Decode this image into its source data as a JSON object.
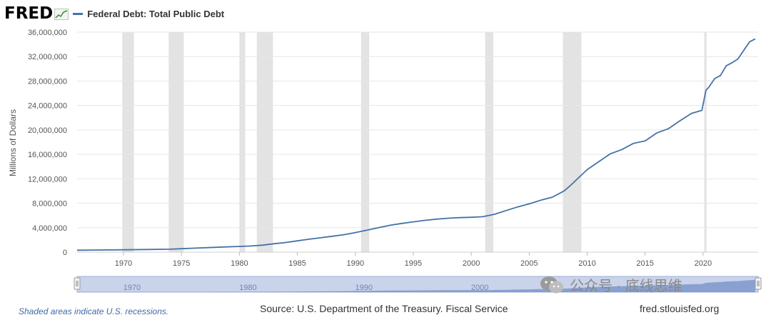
{
  "header": {
    "logo_text": "FRED",
    "legend_label": "Federal Debt: Total Public Debt"
  },
  "chart_data": {
    "type": "line",
    "title": "Federal Debt: Total Public Debt",
    "ylabel": "Millions of Dollars",
    "xlabel": "",
    "ylim": [
      0,
      36000000
    ],
    "xlim": [
      1966,
      2024.75
    ],
    "yticks": [
      0,
      4000000,
      8000000,
      12000000,
      16000000,
      20000000,
      24000000,
      28000000,
      32000000,
      36000000
    ],
    "ytick_labels": [
      "0",
      "4,000,000",
      "8,000,000",
      "12,000,000",
      "16,000,000",
      "20,000,000",
      "24,000,000",
      "28,000,000",
      "32,000,000",
      "36,000,000"
    ],
    "xticks": [
      1970,
      1975,
      1980,
      1985,
      1990,
      1995,
      2000,
      2005,
      2010,
      2015,
      2020
    ],
    "xtick_labels": [
      "1970",
      "1975",
      "1980",
      "1985",
      "1990",
      "1995",
      "2000",
      "2005",
      "2010",
      "2015",
      "2020"
    ],
    "grid": true,
    "series_color": "#4572a7",
    "recession_color": "#e3e3e3",
    "recessions": [
      [
        1969.9,
        1970.9
      ],
      [
        1973.9,
        1975.2
      ],
      [
        1980.0,
        1980.5
      ],
      [
        1981.5,
        1982.9
      ],
      [
        1990.5,
        1991.2
      ],
      [
        2001.2,
        2001.9
      ],
      [
        2007.9,
        2009.5
      ],
      [
        2020.1,
        2020.3
      ]
    ],
    "series": [
      {
        "name": "Federal Debt: Total Public Debt",
        "x": [
          1966,
          1968,
          1970,
          1972,
          1974,
          1975,
          1976,
          1978,
          1980,
          1981,
          1982,
          1983,
          1984,
          1985,
          1986,
          1987,
          1988,
          1989,
          1990,
          1991,
          1992,
          1993,
          1994,
          1995,
          1996,
          1997,
          1998,
          1999,
          2000,
          2001,
          2002,
          2003,
          2004,
          2005,
          2006,
          2007,
          2008,
          2008.5,
          2009,
          2010,
          2011,
          2012,
          2013,
          2014,
          2015,
          2016,
          2017,
          2018,
          2019,
          2019.9,
          2020.25,
          2020.5,
          2021,
          2021.5,
          2022,
          2022.5,
          2023,
          2023.5,
          2024,
          2024.5
        ],
        "values": [
          320000,
          350000,
          380000,
          430000,
          480000,
          560000,
          640000,
          790000,
          930000,
          1000000,
          1150000,
          1380000,
          1580000,
          1850000,
          2120000,
          2350000,
          2600000,
          2850000,
          3200000,
          3600000,
          4000000,
          4400000,
          4700000,
          4950000,
          5200000,
          5400000,
          5550000,
          5650000,
          5700000,
          5800000,
          6200000,
          6800000,
          7400000,
          7900000,
          8500000,
          9000000,
          10000000,
          10800000,
          11700000,
          13500000,
          14800000,
          16100000,
          16800000,
          17800000,
          18200000,
          19500000,
          20200000,
          21500000,
          22700000,
          23200000,
          26500000,
          27000000,
          28400000,
          28900000,
          30500000,
          31000000,
          31600000,
          33000000,
          34400000,
          34900000
        ]
      }
    ],
    "navigator_labels": [
      "1970",
      "1980",
      "1990",
      "2000"
    ]
  },
  "footer": {
    "note": "Shaded areas indicate U.S. recessions.",
    "source": "Source: U.S. Department of the Treasury. Fiscal Service",
    "url": "fred.stlouisfed.org"
  },
  "watermark": {
    "text": "公众号 · 底线思维"
  }
}
